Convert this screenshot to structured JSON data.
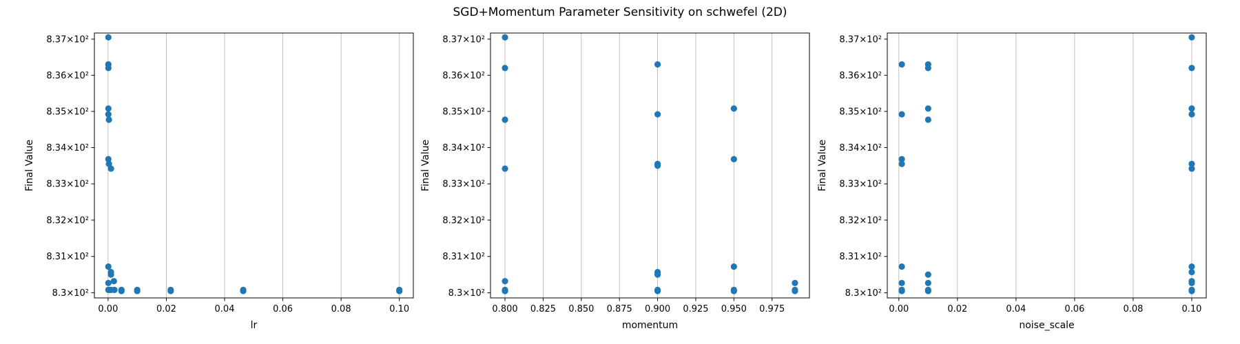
{
  "figure": {
    "title": "SGD+Momentum Parameter Sensitivity on schwefel (2D)"
  },
  "style": {
    "point_color": "#1f77b4",
    "grid_color": "#b0b0b0",
    "axis_color": "#000000"
  },
  "chart_data": [
    {
      "type": "scatter",
      "xlabel": "lr",
      "ylabel": "Final Value",
      "xlim": [
        -0.0047,
        0.1048
      ],
      "ylim": [
        829.86,
        837.17
      ],
      "yscale": "log",
      "grid": {
        "x": true,
        "y": false
      },
      "xticks": [
        0.0,
        0.02,
        0.04,
        0.06,
        0.08,
        0.1
      ],
      "xtick_labels": [
        "0.00",
        "0.02",
        "0.04",
        "0.06",
        "0.08",
        "0.10"
      ],
      "yticks": [
        830,
        831,
        832,
        833,
        834,
        835,
        836,
        837
      ],
      "ytick_labels": [
        "8.3×10²",
        "8.31×10²",
        "8.32×10²",
        "8.33×10²",
        "8.34×10²",
        "8.35×10²",
        "8.36×10²",
        "8.37×10²"
      ],
      "points": [
        {
          "x": 0.0001,
          "y": 837.05
        },
        {
          "x": 0.0001,
          "y": 836.3
        },
        {
          "x": 0.0001,
          "y": 836.2
        },
        {
          "x": 0.0001,
          "y": 835.08
        },
        {
          "x": 0.0001,
          "y": 834.92
        },
        {
          "x": 0.0003,
          "y": 834.77
        },
        {
          "x": 0.0001,
          "y": 833.68
        },
        {
          "x": 0.0003,
          "y": 833.55
        },
        {
          "x": 0.001,
          "y": 833.42
        },
        {
          "x": 0.0001,
          "y": 830.72
        },
        {
          "x": 0.001,
          "y": 830.57
        },
        {
          "x": 0.001,
          "y": 830.5
        },
        {
          "x": 0.002,
          "y": 830.32
        },
        {
          "x": 0.0001,
          "y": 830.27
        },
        {
          "x": 0.0001,
          "y": 830.08
        },
        {
          "x": 0.0005,
          "y": 830.08
        },
        {
          "x": 0.001,
          "y": 830.08
        },
        {
          "x": 0.0022,
          "y": 830.08
        },
        {
          "x": 0.0046,
          "y": 830.08
        },
        {
          "x": 0.0046,
          "y": 830.05
        },
        {
          "x": 0.01,
          "y": 830.08
        },
        {
          "x": 0.01,
          "y": 830.05
        },
        {
          "x": 0.0215,
          "y": 830.08
        },
        {
          "x": 0.0215,
          "y": 830.05
        },
        {
          "x": 0.0464,
          "y": 830.08
        },
        {
          "x": 0.0464,
          "y": 830.05
        },
        {
          "x": 0.1,
          "y": 830.08
        },
        {
          "x": 0.1,
          "y": 830.05
        }
      ]
    },
    {
      "type": "scatter",
      "xlabel": "momentum",
      "ylabel": "Final Value",
      "xlim": [
        0.7905,
        0.9995
      ],
      "ylim": [
        829.86,
        837.17
      ],
      "yscale": "log",
      "grid": {
        "x": true,
        "y": false
      },
      "xticks": [
        0.8,
        0.825,
        0.85,
        0.875,
        0.9,
        0.925,
        0.95,
        0.975
      ],
      "xtick_labels": [
        "0.800",
        "0.825",
        "0.850",
        "0.875",
        "0.900",
        "0.925",
        "0.950",
        "0.975"
      ],
      "yticks": [
        830,
        831,
        832,
        833,
        834,
        835,
        836,
        837
      ],
      "ytick_labels": [
        "8.3×10²",
        "8.31×10²",
        "8.32×10²",
        "8.33×10²",
        "8.34×10²",
        "8.35×10²",
        "8.36×10²",
        "8.37×10²"
      ],
      "points": [
        {
          "x": 0.8,
          "y": 837.05
        },
        {
          "x": 0.8,
          "y": 836.2
        },
        {
          "x": 0.8,
          "y": 834.77
        },
        {
          "x": 0.8,
          "y": 833.42
        },
        {
          "x": 0.8,
          "y": 830.32
        },
        {
          "x": 0.8,
          "y": 830.08
        },
        {
          "x": 0.8,
          "y": 830.05
        },
        {
          "x": 0.9,
          "y": 836.3
        },
        {
          "x": 0.9,
          "y": 834.92
        },
        {
          "x": 0.9,
          "y": 833.55
        },
        {
          "x": 0.9,
          "y": 833.5
        },
        {
          "x": 0.9,
          "y": 830.57
        },
        {
          "x": 0.9,
          "y": 830.5
        },
        {
          "x": 0.9,
          "y": 830.08
        },
        {
          "x": 0.9,
          "y": 830.05
        },
        {
          "x": 0.95,
          "y": 835.08
        },
        {
          "x": 0.95,
          "y": 833.68
        },
        {
          "x": 0.95,
          "y": 830.72
        },
        {
          "x": 0.95,
          "y": 830.08
        },
        {
          "x": 0.95,
          "y": 830.05
        },
        {
          "x": 0.99,
          "y": 830.27
        },
        {
          "x": 0.99,
          "y": 830.08
        },
        {
          "x": 0.99,
          "y": 830.05
        }
      ]
    },
    {
      "type": "scatter",
      "xlabel": "noise_scale",
      "ylabel": "Final Value",
      "xlim": [
        -0.00395,
        0.10495
      ],
      "ylim": [
        829.86,
        837.17
      ],
      "yscale": "log",
      "grid": {
        "x": true,
        "y": false
      },
      "xticks": [
        0.0,
        0.02,
        0.04,
        0.06,
        0.08,
        0.1
      ],
      "xtick_labels": [
        "0.00",
        "0.02",
        "0.04",
        "0.06",
        "0.08",
        "0.10"
      ],
      "yticks": [
        830,
        831,
        832,
        833,
        834,
        835,
        836,
        837
      ],
      "ytick_labels": [
        "8.3×10²",
        "8.31×10²",
        "8.32×10²",
        "8.33×10²",
        "8.34×10²",
        "8.35×10²",
        "8.36×10²",
        "8.37×10²"
      ],
      "points": [
        {
          "x": 0.001,
          "y": 836.3
        },
        {
          "x": 0.001,
          "y": 834.92
        },
        {
          "x": 0.001,
          "y": 833.68
        },
        {
          "x": 0.001,
          "y": 833.55
        },
        {
          "x": 0.001,
          "y": 830.72
        },
        {
          "x": 0.001,
          "y": 830.27
        },
        {
          "x": 0.001,
          "y": 830.08
        },
        {
          "x": 0.001,
          "y": 830.05
        },
        {
          "x": 0.01,
          "y": 836.3
        },
        {
          "x": 0.01,
          "y": 836.2
        },
        {
          "x": 0.01,
          "y": 835.08
        },
        {
          "x": 0.01,
          "y": 834.77
        },
        {
          "x": 0.01,
          "y": 830.5
        },
        {
          "x": 0.01,
          "y": 830.27
        },
        {
          "x": 0.01,
          "y": 830.08
        },
        {
          "x": 0.01,
          "y": 830.05
        },
        {
          "x": 0.1,
          "y": 837.05
        },
        {
          "x": 0.1,
          "y": 836.2
        },
        {
          "x": 0.1,
          "y": 835.08
        },
        {
          "x": 0.1,
          "y": 834.92
        },
        {
          "x": 0.1,
          "y": 833.55
        },
        {
          "x": 0.1,
          "y": 833.42
        },
        {
          "x": 0.1,
          "y": 830.72
        },
        {
          "x": 0.1,
          "y": 830.57
        },
        {
          "x": 0.1,
          "y": 830.32
        },
        {
          "x": 0.1,
          "y": 830.27
        },
        {
          "x": 0.1,
          "y": 830.08
        },
        {
          "x": 0.1,
          "y": 830.05
        }
      ]
    }
  ]
}
